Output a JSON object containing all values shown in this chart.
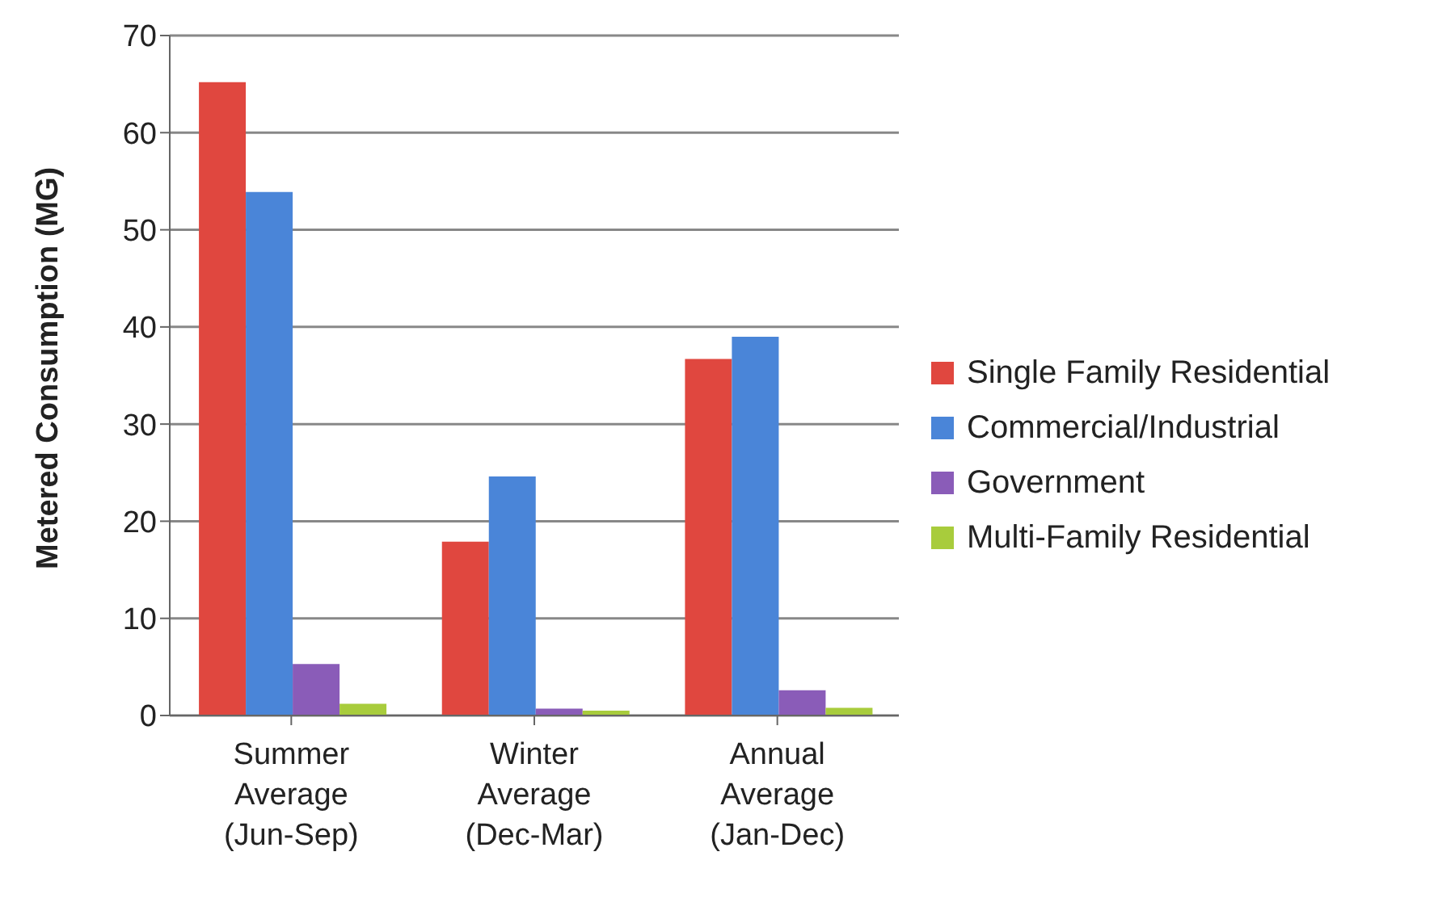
{
  "chart_data": {
    "type": "bar",
    "ylabel": "Metered Consumption (MG)",
    "categories": [
      "Summer Average (Jun-Sep)",
      "Winter Average (Dec-Mar)",
      "Annual Average (Jan-Dec)"
    ],
    "series": [
      {
        "name": "Single Family Residential",
        "color": "#e0473f",
        "values": [
          65.2,
          17.9,
          36.7
        ]
      },
      {
        "name": "Commercial/Industrial",
        "color": "#4a85d8",
        "values": [
          53.9,
          24.6,
          39.0
        ]
      },
      {
        "name": "Government",
        "color": "#8a5cb8",
        "values": [
          5.3,
          0.7,
          2.6
        ]
      },
      {
        "name": "Multi-Family Residential",
        "color": "#a8cc3c",
        "values": [
          1.2,
          0.5,
          0.8
        ]
      }
    ],
    "ylim": [
      0,
      70
    ],
    "yticks": [
      0,
      10,
      20,
      30,
      40,
      50,
      60,
      70
    ],
    "grid": "y",
    "legend": "right"
  }
}
